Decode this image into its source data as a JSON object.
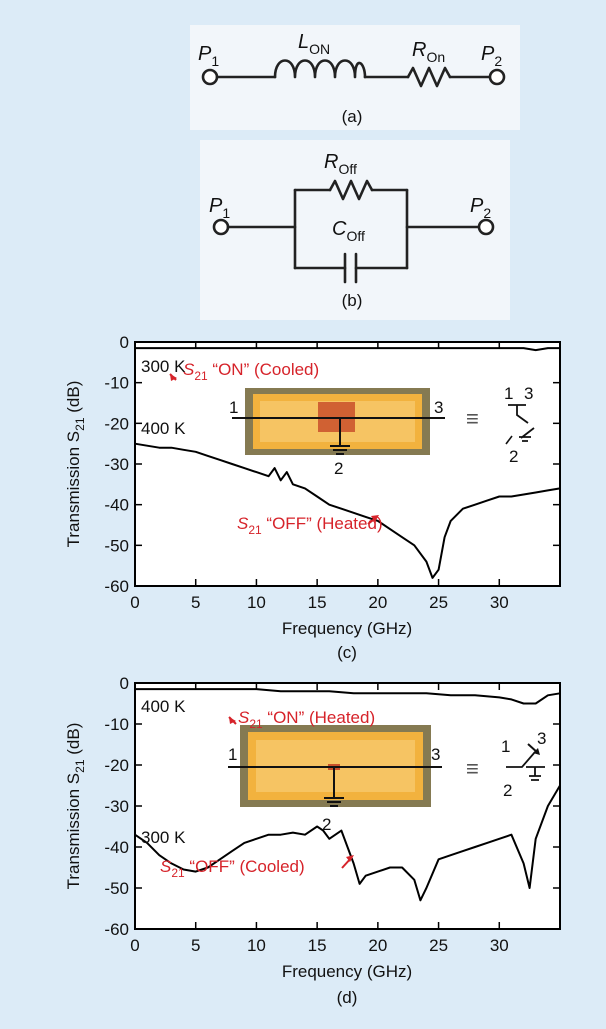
{
  "circuit_a": {
    "p1": "P",
    "p1_sub": "1",
    "p2": "P",
    "p2_sub": "2",
    "inductor": "L",
    "inductor_sub": "ON",
    "resistor": "R",
    "resistor_sub": "On",
    "caption": "(a)"
  },
  "circuit_b": {
    "p1": "P",
    "p1_sub": "1",
    "p2": "P",
    "p2_sub": "2",
    "resistor": "R",
    "resistor_sub": "Off",
    "capacitor": "C",
    "capacitor_sub": "Off",
    "caption": "(b)"
  },
  "chart_data": [
    {
      "type": "line",
      "caption": "(c)",
      "xlabel": "Frequency (GHz)",
      "ylabel_prefix": "Transmission S",
      "ylabel_sub": "21",
      "ylabel_suffix": " (dB)",
      "xlim": [
        0,
        35
      ],
      "ylim": [
        -60,
        0
      ],
      "xticks": [
        0,
        5,
        10,
        15,
        20,
        25,
        30
      ],
      "yticks": [
        0,
        -10,
        -20,
        -30,
        -40,
        -50,
        -60
      ],
      "labels": {
        "top_temp": "300 K",
        "bottom_temp": "400 K",
        "on_prefix": "S",
        "on_sub": "21",
        "on_suffix": " “ON” (Cooled)",
        "off_prefix": "S",
        "off_sub": "21",
        "off_suffix": " “OFF” (Heated)",
        "port1": "1",
        "port2": "2",
        "port3": "3",
        "eq": "≡",
        "sym1": "1",
        "sym2": "2",
        "sym3": "3"
      },
      "series": [
        {
          "x": [
            0,
            1,
            2,
            3,
            4,
            5,
            6,
            7,
            8,
            9,
            10,
            11,
            12,
            13,
            14,
            15,
            16,
            17,
            18,
            19,
            20,
            21,
            22,
            23,
            24,
            25,
            26,
            27,
            28,
            29,
            30,
            31,
            32,
            33,
            34,
            35
          ],
          "y": [
            -1.5,
            -1.5,
            -1.5,
            -1.5,
            -1.5,
            -1.5,
            -1.5,
            -1.5,
            -1.5,
            -1.5,
            -1.5,
            -1.5,
            -1.5,
            -1.5,
            -1.5,
            -1.5,
            -1.5,
            -1.5,
            -1.5,
            -1.5,
            -1.5,
            -1.5,
            -1.5,
            -1.5,
            -1.5,
            -1.5,
            -1.5,
            -1.5,
            -1.5,
            -1.5,
            -1.5,
            -1.5,
            -1.5,
            -2,
            -1.5,
            -1.5
          ]
        },
        {
          "x": [
            0,
            1,
            2,
            3,
            4,
            5,
            6,
            7,
            8,
            9,
            10,
            11,
            11.5,
            12,
            12.5,
            13,
            14,
            15,
            16,
            17,
            18,
            19,
            20,
            21,
            22,
            23,
            24,
            24.5,
            25,
            25.5,
            26,
            27,
            28,
            29,
            30,
            31,
            32,
            33,
            34,
            35
          ],
          "y": [
            -25,
            -25.5,
            -26,
            -26,
            -26.5,
            -27,
            -28,
            -29,
            -30,
            -31,
            -32,
            -33,
            -31,
            -34,
            -32,
            -35,
            -36,
            -38,
            -40,
            -41,
            -42,
            -43,
            -44,
            -46,
            -48,
            -50,
            -54,
            -58,
            -56,
            -48,
            -44,
            -41,
            -40,
            -39,
            -38,
            -38,
            -37.5,
            -37,
            -36.5,
            -36
          ]
        }
      ]
    },
    {
      "type": "line",
      "caption": "(d)",
      "xlabel": "Frequency (GHz)",
      "ylabel_prefix": "Transmission S",
      "ylabel_sub": "21",
      "ylabel_suffix": " (dB)",
      "xlim": [
        0,
        35
      ],
      "ylim": [
        -60,
        0
      ],
      "xticks": [
        0,
        5,
        10,
        15,
        20,
        25,
        30
      ],
      "yticks": [
        0,
        -10,
        -20,
        -30,
        -40,
        -50,
        -60
      ],
      "labels": {
        "top_temp": "400 K",
        "bottom_temp": "300 K",
        "on_prefix": "S",
        "on_sub": "21",
        "on_suffix": " “ON” (Heated)",
        "off_prefix": "S",
        "off_sub": "21",
        "off_suffix": " “OFF” (Cooled)",
        "port1": "1",
        "port2": "2",
        "port3": "3",
        "eq": "≡",
        "sym1": "1",
        "sym2": "2",
        "sym3": "3"
      },
      "series": [
        {
          "x": [
            0,
            2,
            4,
            6,
            8,
            10,
            12,
            14,
            16,
            18,
            20,
            22,
            24,
            26,
            28,
            30,
            31,
            32,
            33,
            34,
            35
          ],
          "y": [
            -1.5,
            -1.5,
            -1.5,
            -1.5,
            -1.5,
            -1.5,
            -2,
            -2,
            -2,
            -2.5,
            -2.5,
            -2.5,
            -2.5,
            -3,
            -3,
            -3.5,
            -4,
            -5,
            -5,
            -3,
            -2.5
          ]
        },
        {
          "x": [
            0,
            1,
            2,
            3,
            4,
            5,
            6,
            7,
            8,
            9,
            10,
            11,
            12,
            13,
            14,
            15,
            15.5,
            16,
            17,
            17.5,
            18,
            18.5,
            19,
            20,
            21,
            22,
            23,
            23.5,
            24,
            25,
            26,
            27,
            28,
            29,
            30,
            31,
            32,
            32.5,
            33,
            34,
            35
          ],
          "y": [
            -37,
            -39,
            -42,
            -44,
            -45.5,
            -46,
            -45,
            -43,
            -41,
            -39,
            -38,
            -37,
            -37,
            -36.5,
            -37,
            -35,
            -36,
            -38,
            -36,
            -40,
            -44,
            -49,
            -47,
            -46,
            -45,
            -45,
            -48,
            -53,
            -50,
            -43,
            -42,
            -41,
            -40,
            -39,
            -38,
            -37,
            -44,
            -50,
            -38,
            -30,
            -25
          ]
        }
      ]
    }
  ]
}
